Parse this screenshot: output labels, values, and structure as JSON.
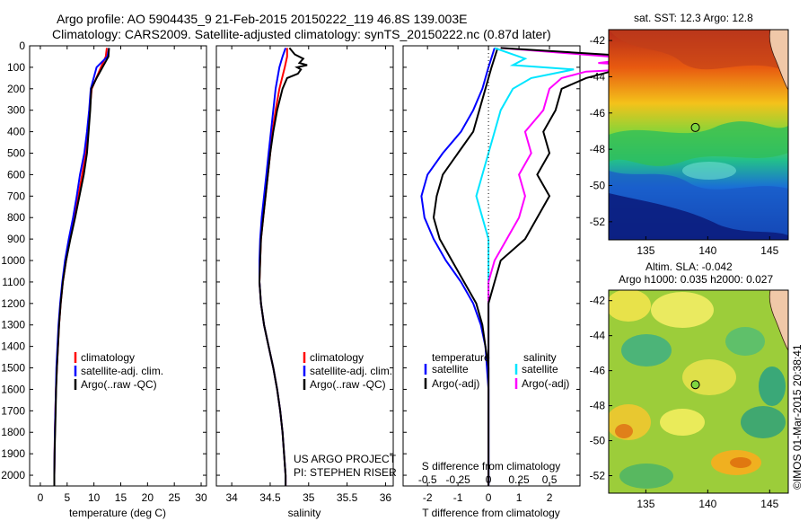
{
  "header": {
    "line1": "Argo profile: AO 5904435_9 21-Feb-2015 20150222_119 46.8S 139.003E",
    "line2": "Climatology: CARS2009. Satellite-adjusted climatology: synTS_20150222.nc (0.87d later)"
  },
  "depth_ticks": [
    "0",
    "100",
    "200",
    "300",
    "400",
    "500",
    "600",
    "700",
    "800",
    "900",
    "1000",
    "1100",
    "1200",
    "1300",
    "1400",
    "1500",
    "1600",
    "1700",
    "1800",
    "1900",
    "2000"
  ],
  "colors": {
    "climatology": "#ff0000",
    "satellite": "#0000ff",
    "argo": "#000000",
    "cyan": "#00e5ff",
    "magenta": "#ff00ff"
  },
  "chart_data": [
    {
      "type": "line",
      "xlabel": "temperature (deg C)",
      "ylim": [
        2050,
        0
      ],
      "xlim": [
        -2,
        31
      ],
      "x_ticks": [
        "0",
        "5",
        "10",
        "15",
        "20",
        "25",
        "30"
      ],
      "legend": [
        "climatology",
        "satellite-adj. clim.",
        "Argo(..raw -QC)"
      ],
      "series": [
        {
          "name": "climatology",
          "depth": [
            10,
            50,
            100,
            200,
            300,
            400,
            500,
            600,
            700,
            800,
            900,
            1000,
            1100,
            1200,
            1300,
            1400,
            1500,
            1600,
            1700,
            1800,
            1900,
            2000,
            2050
          ],
          "values": [
            12.4,
            12.2,
            11.3,
            9.6,
            9.2,
            8.9,
            8.5,
            7.8,
            7.1,
            6.3,
            5.5,
            4.8,
            4.2,
            3.8,
            3.5,
            3.3,
            3.1,
            2.9,
            2.8,
            2.7,
            2.65,
            2.6,
            2.6
          ]
        },
        {
          "name": "satellite-adj. clim.",
          "depth": [
            10,
            50,
            100,
            200,
            300,
            400,
            500,
            600,
            700,
            800,
            900,
            1000,
            1100,
            1200,
            1300,
            1400,
            1500,
            1600,
            1700,
            1800,
            1900,
            2000,
            2050
          ],
          "values": [
            12.8,
            12.5,
            10.5,
            9.4,
            9.1,
            8.7,
            8.2,
            7.4,
            6.8,
            6.1,
            5.3,
            4.6,
            4.1,
            3.7,
            3.4,
            3.2,
            3.0,
            2.9,
            2.8,
            2.7,
            2.65,
            2.6,
            2.6
          ]
        },
        {
          "name": "Argo(..raw -QC)",
          "depth": [
            10,
            50,
            100,
            150,
            200,
            300,
            400,
            500,
            600,
            700,
            800,
            900,
            1000,
            1100,
            1200,
            1300,
            1400,
            1500,
            1600,
            1700,
            1800,
            1900,
            2000,
            2050
          ],
          "values": [
            12.8,
            12.7,
            11.6,
            10.5,
            9.5,
            9.3,
            9.0,
            8.7,
            8.1,
            7.3,
            6.5,
            5.6,
            4.8,
            4.2,
            3.8,
            3.5,
            3.3,
            3.1,
            2.95,
            2.85,
            2.75,
            2.65,
            2.6,
            2.6
          ]
        }
      ]
    },
    {
      "type": "line",
      "xlabel": "salinity",
      "ylim": [
        2050,
        0
      ],
      "xlim": [
        33.8,
        36.1
      ],
      "x_ticks": [
        "34",
        "34.5",
        "35",
        "35.5",
        "36"
      ],
      "legend": [
        "climatology",
        "satellite-adj. clim.",
        "Argo(..raw -QC)"
      ],
      "annotation": [
        "US ARGO PROJECT",
        "PI: STEPHEN RISER"
      ],
      "series": [
        {
          "name": "climatology",
          "depth": [
            10,
            50,
            100,
            200,
            300,
            400,
            500,
            600,
            700,
            800,
            900,
            1000,
            1100,
            1200,
            1300,
            1400,
            1500,
            1600,
            1700,
            1800,
            1900,
            2000,
            2050
          ],
          "values": [
            34.72,
            34.72,
            34.69,
            34.62,
            34.57,
            34.53,
            34.5,
            34.47,
            34.44,
            34.41,
            34.38,
            34.37,
            34.36,
            34.38,
            34.42,
            34.48,
            34.54,
            34.59,
            34.63,
            34.66,
            34.68,
            34.7,
            34.7
          ]
        },
        {
          "name": "satellite-adj. clim.",
          "depth": [
            10,
            50,
            100,
            200,
            300,
            400,
            500,
            600,
            700,
            800,
            900,
            1000,
            1100,
            1200,
            1300,
            1400,
            1500,
            1600,
            1700,
            1800,
            1900,
            2000,
            2050
          ],
          "values": [
            34.7,
            34.66,
            34.62,
            34.57,
            34.54,
            34.51,
            34.48,
            34.45,
            34.42,
            34.39,
            34.37,
            34.36,
            34.36,
            34.38,
            34.42,
            34.48,
            34.54,
            34.59,
            34.63,
            34.66,
            34.68,
            34.7,
            34.7
          ]
        },
        {
          "name": "Argo(..raw -QC)",
          "depth": [
            10,
            40,
            60,
            80,
            90,
            100,
            110,
            130,
            150,
            200,
            300,
            400,
            500,
            600,
            700,
            800,
            900,
            1000,
            1100,
            1200,
            1300,
            1400,
            1500,
            1600,
            1700,
            1800,
            1900,
            2000,
            2050
          ],
          "values": [
            34.75,
            34.82,
            34.93,
            34.88,
            34.98,
            34.85,
            34.9,
            34.86,
            34.72,
            34.66,
            34.59,
            34.54,
            34.5,
            34.47,
            34.44,
            34.41,
            34.38,
            34.37,
            34.36,
            34.38,
            34.42,
            34.48,
            34.54,
            34.59,
            34.63,
            34.66,
            34.68,
            34.7,
            34.7
          ]
        }
      ]
    },
    {
      "type": "line",
      "xlabel": "T difference from climatology",
      "x2label": "S difference from climatology",
      "ylim": [
        2050,
        0
      ],
      "xlim": [
        -2.8,
        3.0
      ],
      "x_ticks": [
        "-2",
        "-1",
        "0",
        "1",
        "2"
      ],
      "x2_ticks": [
        "-0.5",
        "-0.25",
        "0",
        "0.25",
        "0.5"
      ],
      "legend_temperature_title": "temperature",
      "legend_salinity_title": "salinity",
      "legend": [
        "satellite",
        "Argo(-adj)",
        "satellite",
        "Argo(-adj)"
      ],
      "series": [
        {
          "name": "temperature satellite",
          "depth": [
            10,
            100,
            200,
            300,
            400,
            500,
            600,
            700,
            800,
            900,
            1000,
            1100,
            1200,
            1300,
            1400,
            1500,
            1600,
            1700,
            1800,
            1900,
            2000,
            2050
          ],
          "values": [
            0.2,
            0.0,
            -0.2,
            -0.5,
            -0.9,
            -1.5,
            -2.0,
            -2.2,
            -2.1,
            -1.8,
            -1.4,
            -0.9,
            -0.5,
            -0.25,
            -0.1,
            -0.05,
            0.0,
            0.0,
            0.0,
            0.0,
            0.0,
            0.0
          ]
        },
        {
          "name": "temperature Argo(-adj)",
          "depth": [
            10,
            100,
            200,
            300,
            400,
            500,
            600,
            700,
            800,
            900,
            1000,
            1100,
            1200,
            1300,
            1400,
            1500,
            1600,
            1700,
            1800,
            1900,
            2000,
            2050
          ],
          "values": [
            0.3,
            0.1,
            -0.1,
            -0.3,
            -0.5,
            -1.0,
            -1.5,
            -1.7,
            -1.8,
            -1.6,
            -1.2,
            -0.8,
            -0.4,
            -0.2,
            -0.1,
            0.0,
            0.0,
            0.0,
            0.0,
            0.0,
            0.0,
            0.0
          ]
        },
        {
          "name": "salinity satellite",
          "depth": [
            10,
            60,
            90,
            110,
            150,
            200,
            300,
            400,
            500,
            600,
            700,
            800,
            900,
            1000,
            1100,
            1200,
            1300,
            1400,
            1500,
            1600,
            1700,
            1800,
            1900,
            2000,
            2050
          ],
          "values": [
            0.05,
            0.3,
            0.2,
            0.7,
            0.35,
            0.2,
            0.1,
            0.05,
            0.0,
            -0.05,
            -0.1,
            -0.05,
            0.0,
            0.0,
            0.0,
            0.0,
            0.0,
            0.0,
            0.0,
            0.0,
            0.0,
            0.0,
            0.0,
            0.0,
            0.0
          ]
        },
        {
          "name": "salinity Argo(-adj)",
          "depth": [
            10,
            60,
            80,
            100,
            120,
            150,
            200,
            300,
            400,
            500,
            600,
            700,
            800,
            900,
            1000,
            1100,
            1200,
            1300,
            1400,
            1500,
            1600,
            1700,
            1800,
            1900,
            2000,
            2050
          ],
          "values": [
            0.1,
            1.2,
            0.9,
            1.5,
            0.8,
            0.6,
            0.5,
            0.45,
            0.3,
            0.35,
            0.25,
            0.3,
            0.25,
            0.15,
            0.05,
            0.0,
            0.0,
            0.0,
            0.0,
            0.0,
            0.0,
            0.0,
            0.0,
            0.0,
            0.0,
            0.0
          ]
        },
        {
          "name": "Argo raw",
          "depth": [
            10,
            60,
            80,
            100,
            120,
            150,
            200,
            300,
            400,
            500,
            600,
            700,
            800,
            900,
            1000,
            1100,
            1200,
            1300,
            1400,
            1500,
            1600,
            1700,
            1800,
            1900,
            2000,
            2050
          ],
          "values": [
            0.1,
            1.5,
            1.1,
            1.9,
            1.0,
            0.8,
            0.6,
            0.55,
            0.45,
            0.5,
            0.4,
            0.5,
            0.4,
            0.3,
            0.1,
            0.05,
            0.0,
            0.0,
            0.0,
            0.0,
            0.0,
            0.0,
            0.0,
            0.0,
            0.0,
            0.0
          ]
        }
      ]
    },
    {
      "type": "heatmap",
      "title": "sat. SST: 12.3 Argo: 12.8",
      "x_ticks": [
        "135",
        "140",
        "145"
      ],
      "y_ticks": [
        "-42",
        "-44",
        "-46",
        "-48",
        "-50",
        "-52"
      ],
      "xlim": [
        132,
        146.5
      ],
      "ylim": [
        -53,
        -41.4
      ],
      "float_lon": 139.0,
      "float_lat": -46.8
    },
    {
      "type": "heatmap",
      "title": "Altim. SLA: -0.042",
      "subtitle": "Argo h1000: 0.035 h2000: 0.027",
      "x_ticks": [
        "135",
        "140",
        "145"
      ],
      "y_ticks": [
        "-42",
        "-44",
        "-46",
        "-48",
        "-50",
        "-52"
      ],
      "xlim": [
        132,
        146.5
      ],
      "ylim": [
        -53,
        -41.4
      ],
      "float_lon": 139.0,
      "float_lat": -46.8
    }
  ],
  "footer": {
    "stamp": "©IMOS 01-Mar-2015 20:38:41"
  }
}
